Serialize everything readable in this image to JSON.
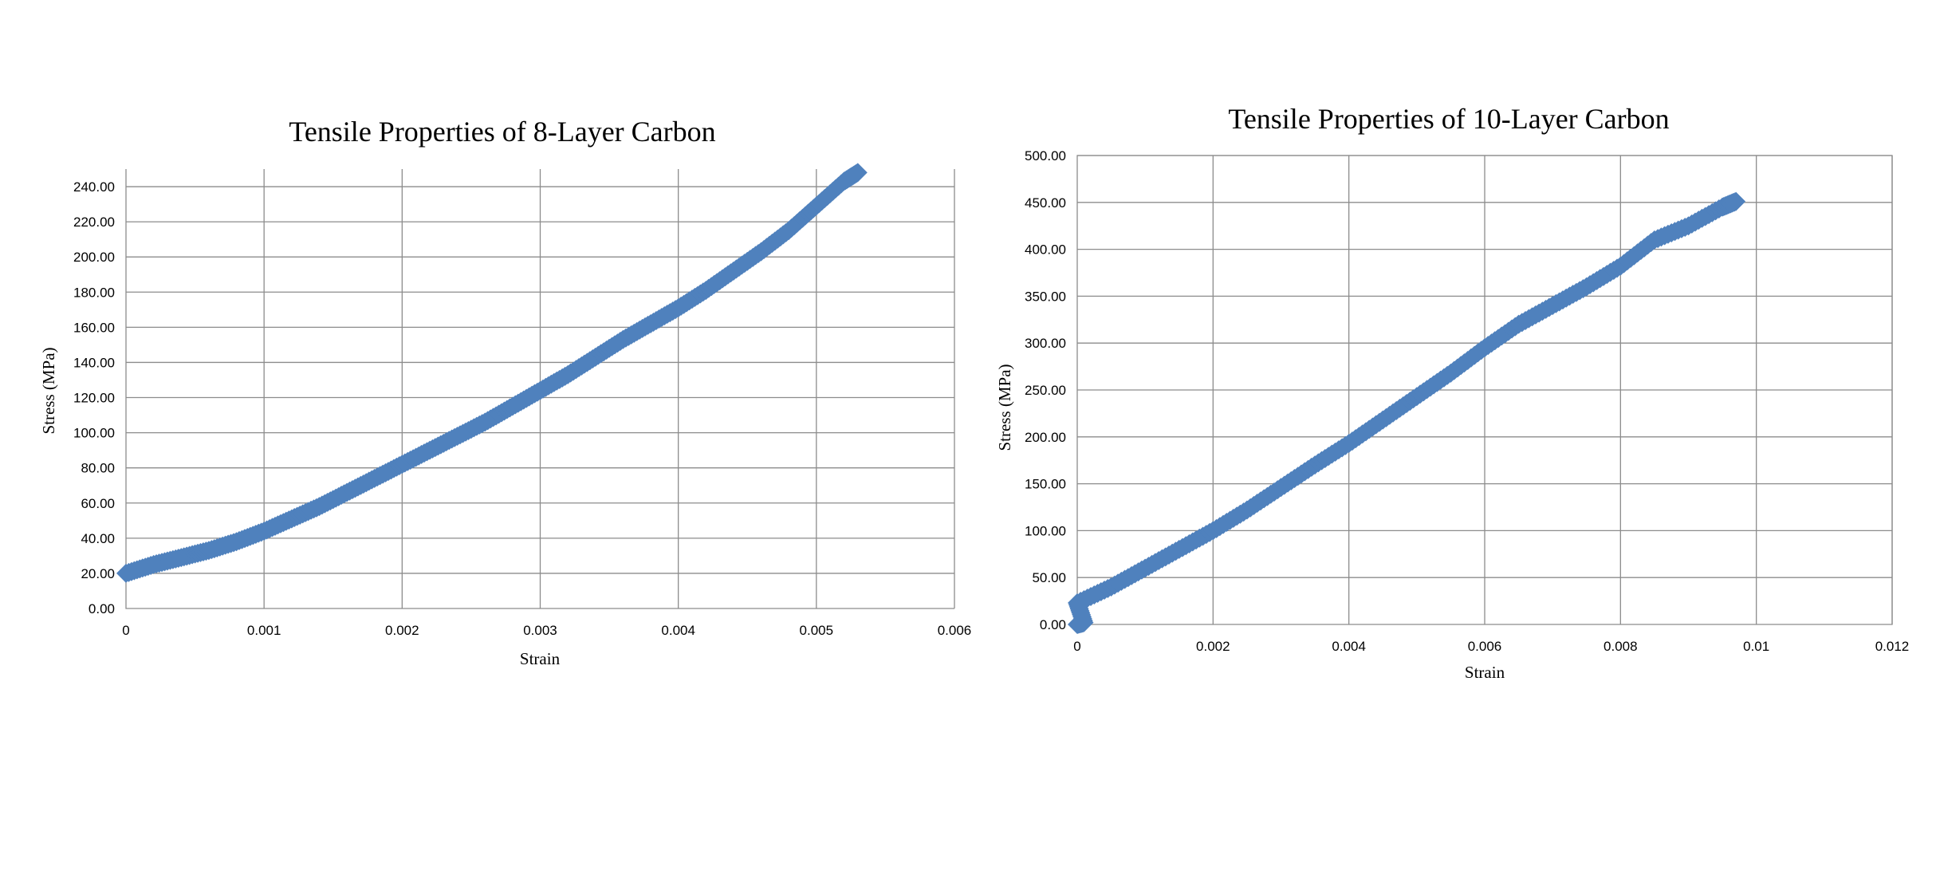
{
  "chart_data": [
    {
      "type": "scatter",
      "title": "Tensile Properties of 8-Layer Carbon",
      "xlabel": "Strain",
      "ylabel": "Stress (MPa)",
      "xlim": [
        0,
        0.006
      ],
      "ylim": [
        0,
        250
      ],
      "x_tick_labels": [
        "0",
        "0.001",
        "0.002",
        "0.003",
        "0.004",
        "0.005",
        "0.006"
      ],
      "y_tick_labels": [
        "0.00",
        "20.00",
        "40.00",
        "60.00",
        "80.00",
        "100.00",
        "120.00",
        "140.00",
        "160.00",
        "180.00",
        "200.00",
        "220.00",
        "240.00"
      ],
      "grid": true,
      "legend": "none",
      "marker_color": "#4f81bd",
      "series": [
        {
          "x": [
            0,
            0.0002,
            0.0004,
            0.0006,
            0.0008,
            0.001,
            0.0012,
            0.0014,
            0.0016,
            0.0018,
            0.002,
            0.0022,
            0.0024,
            0.0026,
            0.0028,
            0.003,
            0.0032,
            0.0034,
            0.0036,
            0.0038,
            0.004,
            0.0042,
            0.0044,
            0.0046,
            0.0048,
            0.005,
            0.0052,
            0.0053
          ],
          "y": [
            20,
            25,
            29,
            33,
            38,
            44,
            51,
            58,
            66,
            74,
            82,
            90,
            98,
            106,
            115,
            124,
            133,
            143,
            153,
            162,
            171,
            181,
            192,
            203,
            215,
            229,
            243,
            248
          ]
        }
      ]
    },
    {
      "type": "scatter",
      "title": "Tensile Properties of 10-Layer Carbon",
      "xlabel": "Strain",
      "ylabel": "Stress (MPa)",
      "xlim": [
        0,
        0.012
      ],
      "ylim": [
        0,
        500
      ],
      "x_tick_labels": [
        "0",
        "0.002",
        "0.004",
        "0.006",
        "0.008",
        "0.01",
        "0.012"
      ],
      "y_tick_labels": [
        "0.00",
        "50.00",
        "100.00",
        "150.00",
        "200.00",
        "250.00",
        "300.00",
        "350.00",
        "400.00",
        "450.00",
        "500.00"
      ],
      "grid": true,
      "legend": "none",
      "marker_color": "#4f81bd",
      "series": [
        {
          "x": [
            0,
            0.0001,
            0,
            0.0005,
            0.001,
            0.0015,
            0.002,
            0.0025,
            0.003,
            0.0035,
            0.004,
            0.0045,
            0.005,
            0.0055,
            0.006,
            0.0065,
            0.007,
            0.0075,
            0.008,
            0.0085,
            0.009,
            0.0095,
            0.0097
          ],
          "y": [
            0,
            2,
            23,
            40,
            60,
            80,
            100,
            122,
            146,
            170,
            193,
            218,
            243,
            268,
            295,
            320,
            340,
            360,
            382,
            410,
            425,
            445,
            451
          ]
        }
      ]
    }
  ]
}
